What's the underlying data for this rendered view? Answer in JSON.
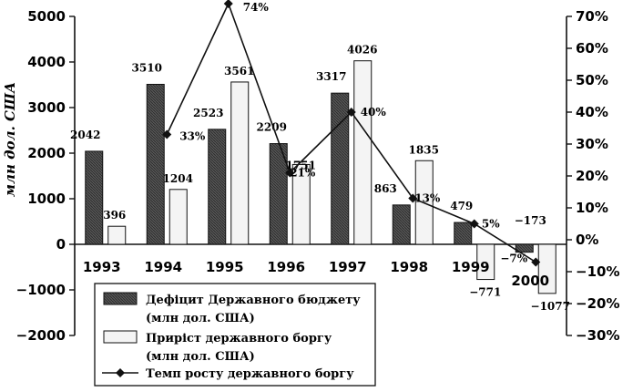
{
  "chart_data": {
    "type": "bar",
    "title": "",
    "categories": [
      "1993",
      "1994",
      "1995",
      "1996",
      "1997",
      "1998",
      "1999",
      "2000"
    ],
    "series": [
      {
        "name_line1": "Дефіцит Державного бюджету",
        "name_line2": "(млн дол. США)",
        "kind": "bar",
        "axis": "left",
        "color": "#555555",
        "values": [
          2042,
          3510,
          2523,
          2209,
          3317,
          863,
          479,
          -173
        ],
        "labels": [
          "2042",
          "3510",
          "2523",
          "2209",
          "3317",
          "863",
          "479",
          "−173"
        ]
      },
      {
        "name_line1": "Приріст державного боргу",
        "name_line2": "(млн дол. США)",
        "kind": "bar",
        "axis": "left",
        "color": "#f4f4f4",
        "values": [
          396,
          1204,
          3561,
          1751,
          4026,
          1835,
          -771,
          -1077
        ],
        "labels": [
          "396",
          "1204",
          "3561",
          "1751",
          "4026",
          "1835",
          "−771",
          "−1077"
        ]
      },
      {
        "name_line1": "Темп росту державного боргу",
        "kind": "line",
        "axis": "right",
        "color": "#111111",
        "values": [
          null,
          33,
          74,
          21,
          40,
          13,
          5,
          -7
        ],
        "labels": [
          "",
          "33%",
          "74%",
          "21%",
          "40%",
          "13%",
          "5%",
          "−7%"
        ]
      }
    ],
    "ylabel": "млн дол. США",
    "ylim": [
      -2000,
      5000
    ],
    "yticks": [
      {
        "v": 5000,
        "t": "5000"
      },
      {
        "v": 4000,
        "t": "4000"
      },
      {
        "v": 3000,
        "t": "3000"
      },
      {
        "v": 2000,
        "t": "2000"
      },
      {
        "v": 1000,
        "t": "1000"
      },
      {
        "v": 0,
        "t": "0"
      },
      {
        "v": -1000,
        "t": "−1000"
      },
      {
        "v": -2000,
        "t": "−2000"
      }
    ],
    "y2lim": [
      -30,
      70
    ],
    "y2ticks": [
      {
        "v": 70,
        "t": "70%"
      },
      {
        "v": 60,
        "t": "60%"
      },
      {
        "v": 50,
        "t": "50%"
      },
      {
        "v": 40,
        "t": "40%"
      },
      {
        "v": 30,
        "t": "30%"
      },
      {
        "v": 20,
        "t": "20%"
      },
      {
        "v": 10,
        "t": "10%"
      },
      {
        "v": 0,
        "t": "0%"
      },
      {
        "v": -10,
        "t": "−10%"
      },
      {
        "v": -20,
        "t": "−20%"
      },
      {
        "v": -30,
        "t": "−30%"
      }
    ],
    "grid": false,
    "legend": "bottom-center"
  }
}
